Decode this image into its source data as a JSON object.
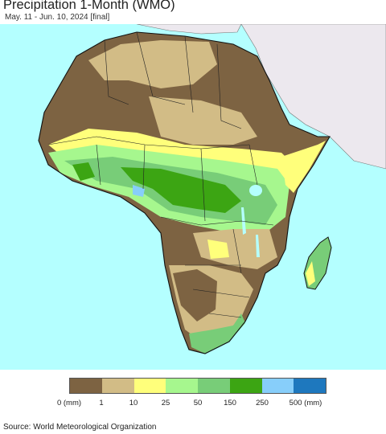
{
  "header": {
    "title": "Precipitation 1-Month (WMO)",
    "subtitle": "May. 11 - Jun. 10, 2024 [final]"
  },
  "colors": {
    "ocean": "#b4ffff",
    "outside_region": "#ece8ee",
    "border": "#111111"
  },
  "legend": {
    "colors": [
      "#7d6342",
      "#d2bc86",
      "#ffff7b",
      "#a6f78e",
      "#78cd78",
      "#3ca513",
      "#87cefa",
      "#1e78be"
    ],
    "labels": [
      "0 (mm)",
      "1",
      "10",
      "25",
      "50",
      "150",
      "250",
      "500 (mm)"
    ]
  },
  "footer": {
    "source": "Source: World Meteorological Organization"
  }
}
